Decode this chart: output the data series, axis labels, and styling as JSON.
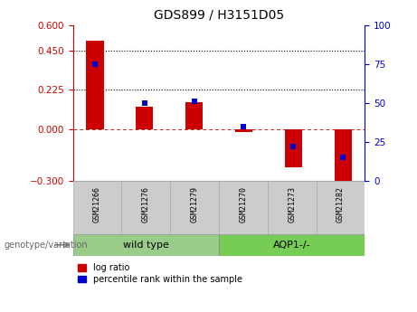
{
  "title": "GDS899 / H3151D05",
  "samples": [
    "GSM21266",
    "GSM21276",
    "GSM21279",
    "GSM21270",
    "GSM21273",
    "GSM21282"
  ],
  "log_ratio": [
    0.51,
    0.13,
    0.155,
    -0.02,
    -0.22,
    -0.32
  ],
  "percentile_rank": [
    75,
    50,
    51,
    35,
    22,
    15
  ],
  "bar_color_red": "#cc0000",
  "dot_color_blue": "#0000cc",
  "ylim_left": [
    -0.3,
    0.6
  ],
  "ylim_right": [
    0,
    100
  ],
  "yticks_left": [
    -0.3,
    0.0,
    0.225,
    0.45,
    0.6
  ],
  "yticks_right": [
    0,
    25,
    50,
    75,
    100
  ],
  "hline_y": [
    0.45,
    0.225
  ],
  "zero_line_y": 0.0,
  "group_label": "genotype/variation",
  "group1_label": "wild type",
  "group2_label": "AQP1-/-",
  "legend_red_label": "log ratio",
  "legend_blue_label": "percentile rank within the sample",
  "bg_color": "#ffffff",
  "sample_bg": "#cccccc",
  "wt_bg": "#99cc88",
  "aqp_bg": "#77cc55",
  "bar_width": 0.35,
  "dot_size": 25
}
